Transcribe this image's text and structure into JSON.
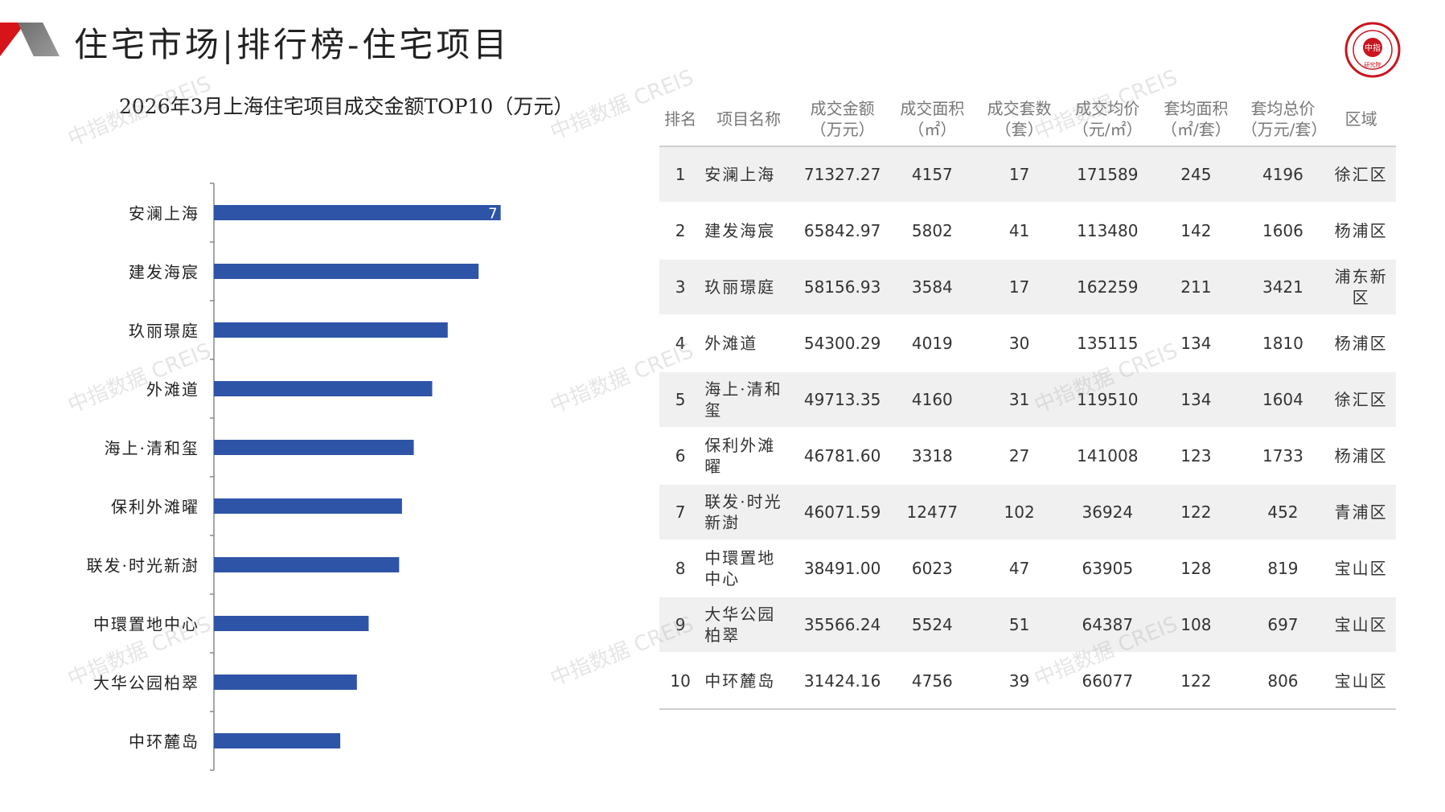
{
  "header": {
    "title": "住宅市场|排行榜-住宅项目"
  },
  "logo": {
    "text": "中指研究院",
    "ring_text": "CHINA INDEX ACADEMY",
    "color": "#c9151e"
  },
  "watermark": "中指数据 CREIS",
  "chart_data": {
    "type": "bar",
    "orientation": "horizontal",
    "title": "2026年3月上海住宅项目成交金额TOP10（万元）",
    "categories": [
      "安澜上海",
      "建发海宸",
      "玖丽璟庭",
      "外滩道",
      "海上·清和玺",
      "保利外滩曜",
      "联发·时光新澍",
      "中環置地中心",
      "大华公园柏翠",
      "中环麓岛"
    ],
    "values": [
      71327.27,
      65842.97,
      58156.93,
      54300.29,
      49713.35,
      46781.6,
      46071.59,
      38491.0,
      35566.24,
      31424.16
    ],
    "xlim": [
      0,
      80000
    ],
    "data_labels": [
      "7"
    ],
    "bar_color": "#2e54a8",
    "grid": false,
    "legend": "none"
  },
  "table": {
    "headers": [
      [
        "排名"
      ],
      [
        "项目名称"
      ],
      [
        "成交金额",
        "（万元）"
      ],
      [
        "成交面积",
        "（㎡）"
      ],
      [
        "成交套数",
        "（套）"
      ],
      [
        "成交均价",
        "（元/㎡）"
      ],
      [
        "套均面积",
        "（㎡/套）"
      ],
      [
        "套均总价",
        "（万元/套）"
      ],
      [
        "区域"
      ]
    ],
    "rows": [
      [
        "1",
        "安澜上海",
        "71327.27",
        "4157",
        "17",
        "171589",
        "245",
        "4196",
        "徐汇区"
      ],
      [
        "2",
        "建发海宸",
        "65842.97",
        "5802",
        "41",
        "113480",
        "142",
        "1606",
        "杨浦区"
      ],
      [
        "3",
        "玖丽璟庭",
        "58156.93",
        "3584",
        "17",
        "162259",
        "211",
        "3421",
        "浦东新区"
      ],
      [
        "4",
        "外滩道",
        "54300.29",
        "4019",
        "30",
        "135115",
        "134",
        "1810",
        "杨浦区"
      ],
      [
        "5",
        "海上·清和玺",
        "49713.35",
        "4160",
        "31",
        "119510",
        "134",
        "1604",
        "徐汇区"
      ],
      [
        "6",
        "保利外滩曜",
        "46781.60",
        "3318",
        "27",
        "141008",
        "123",
        "1733",
        "杨浦区"
      ],
      [
        "7",
        "联发·时光新澍",
        "46071.59",
        "12477",
        "102",
        "36924",
        "122",
        "452",
        "青浦区"
      ],
      [
        "8",
        "中環置地中心",
        "38491.00",
        "6023",
        "47",
        "63905",
        "128",
        "819",
        "宝山区"
      ],
      [
        "9",
        "大华公园柏翠",
        "35566.24",
        "5524",
        "51",
        "64387",
        "108",
        "697",
        "宝山区"
      ],
      [
        "10",
        "中环麓岛",
        "31424.16",
        "4756",
        "39",
        "66077",
        "122",
        "806",
        "宝山区"
      ]
    ]
  }
}
